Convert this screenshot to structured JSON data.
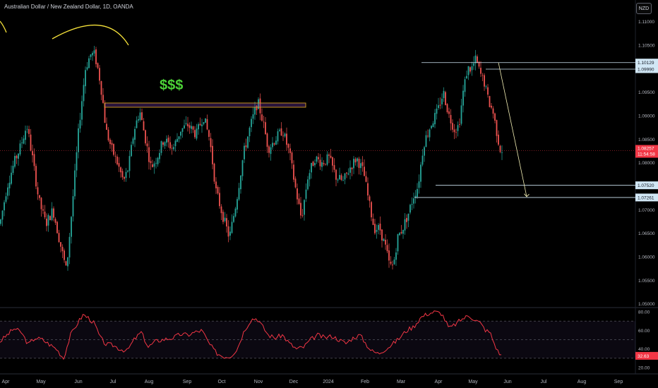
{
  "header": {
    "symbol_title": "Australian Dollar / New Zealand Dollar, 1D, OANDA",
    "currency_button": "NZD"
  },
  "annotations": {
    "dollar_label": "$$$"
  },
  "colors": {
    "background": "#000000",
    "up_candle": "#26a69a",
    "down_candle": "#ef5350",
    "rsi_line": "#f23645",
    "zone_outline": "#d4a020",
    "arc": "#f5e13a",
    "dollar_text": "#4cd137",
    "level_line": "#d1e7f5",
    "price_line": "#f23645"
  },
  "chart_data": [
    {
      "type": "candlestick",
      "x_ticks": [
        "Apr",
        "May",
        "Jun",
        "Jul",
        "Aug",
        "Sep",
        "Oct",
        "Nov",
        "Dec",
        "2024",
        "Feb",
        "Mar",
        "Apr",
        "May",
        "Jun",
        "Jul",
        "Aug",
        "Sep"
      ],
      "y_ticks": [
        "1.11000",
        "1.10500",
        "1.10000",
        "1.09500",
        "1.09000",
        "1.08500",
        "1.08000",
        "1.07500",
        "1.07000",
        "1.06500",
        "1.06000",
        "1.05500",
        "1.05000"
      ],
      "ylim": [
        1.0498,
        1.111
      ],
      "price_path": [
        [
          0,
          1.067
        ],
        [
          10,
          1.075
        ],
        [
          20,
          1.08
        ],
        [
          28,
          1.083
        ],
        [
          38,
          1.088
        ],
        [
          46,
          1.081
        ],
        [
          55,
          1.072
        ],
        [
          65,
          1.067
        ],
        [
          75,
          1.07
        ],
        [
          85,
          1.063
        ],
        [
          94,
          1.057
        ],
        [
          103,
          1.072
        ],
        [
          112,
          1.088
        ],
        [
          121,
          1.1
        ],
        [
          128,
          1.103
        ],
        [
          134,
          1.103
        ],
        [
          140,
          1.099
        ],
        [
          145,
          1.094
        ],
        [
          150,
          1.087
        ],
        [
          158,
          1.083
        ],
        [
          166,
          1.08
        ],
        [
          175,
          1.076
        ],
        [
          182,
          1.079
        ],
        [
          190,
          1.087
        ],
        [
          198,
          1.091
        ],
        [
          206,
          1.085
        ],
        [
          214,
          1.079
        ],
        [
          222,
          1.081
        ],
        [
          232,
          1.085
        ],
        [
          245,
          1.083
        ],
        [
          256,
          1.087
        ],
        [
          266,
          1.088
        ],
        [
          278,
          1.086
        ],
        [
          288,
          1.09
        ],
        [
          297,
          1.085
        ],
        [
          306,
          1.074
        ],
        [
          315,
          1.069
        ],
        [
          325,
          1.064
        ],
        [
          335,
          1.072
        ],
        [
          345,
          1.082
        ],
        [
          355,
          1.088
        ],
        [
          365,
          1.093
        ],
        [
          372,
          1.089
        ],
        [
          380,
          1.083
        ],
        [
          390,
          1.085
        ],
        [
          400,
          1.087
        ],
        [
          410,
          1.082
        ],
        [
          418,
          1.075
        ],
        [
          427,
          1.068
        ],
        [
          436,
          1.077
        ],
        [
          446,
          1.081
        ],
        [
          456,
          1.08
        ],
        [
          466,
          1.081
        ],
        [
          476,
          1.077
        ],
        [
          486,
          1.076
        ],
        [
          496,
          1.079
        ],
        [
          505,
          1.081
        ],
        [
          515,
          1.078
        ],
        [
          522,
          1.072
        ],
        [
          530,
          1.066
        ],
        [
          538,
          1.066
        ],
        [
          546,
          1.062
        ],
        [
          552,
          1.058
        ],
        [
          557,
          1.058
        ],
        [
          563,
          1.064
        ],
        [
          570,
          1.066
        ],
        [
          578,
          1.069
        ],
        [
          586,
          1.073
        ],
        [
          592,
          1.075
        ],
        [
          600,
          1.084
        ],
        [
          610,
          1.088
        ],
        [
          620,
          1.091
        ],
        [
          628,
          1.095
        ],
        [
          636,
          1.09
        ],
        [
          644,
          1.087
        ],
        [
          650,
          1.088
        ],
        [
          656,
          1.095
        ],
        [
          662,
          1.1
        ],
        [
          668,
          1.1
        ],
        [
          674,
          1.102
        ],
        [
          680,
          1.099
        ],
        [
          686,
          1.097
        ],
        [
          692,
          1.093
        ],
        [
          698,
          1.091
        ],
        [
          703,
          1.087
        ],
        [
          708,
          1.083
        ],
        [
          712,
          1.0826
        ]
      ],
      "last_price": "1.08257",
      "countdown": "11:54:58",
      "levels": [
        {
          "value": 1.10129,
          "label": "1.10129",
          "x_start": 597
        },
        {
          "value": 1.0999,
          "label": "1.09990",
          "x_start": 688
        },
        {
          "value": 1.0752,
          "label": "1.07520",
          "x_start": 617
        },
        {
          "value": 1.07261,
          "label": "1.07261",
          "x_start": 587
        }
      ],
      "zone": {
        "x_from": 148,
        "x_to": 433,
        "top": 1.0927,
        "bottom": 1.0918
      },
      "arrow": {
        "from": [
          706,
          1.1013
        ],
        "to": [
          746,
          1.0728
        ]
      }
    },
    {
      "type": "line",
      "name": "RSI",
      "y_ticks": [
        "80.00",
        "60.00",
        "40.00",
        "20.00"
      ],
      "ylim": [
        17,
        83
      ],
      "bands": [
        70,
        50,
        30
      ],
      "last_value": "32.63",
      "values_path": [
        [
          0,
          48
        ],
        [
          10,
          55
        ],
        [
          20,
          62
        ],
        [
          30,
          58
        ],
        [
          40,
          45
        ],
        [
          50,
          52
        ],
        [
          60,
          50
        ],
        [
          70,
          45
        ],
        [
          80,
          40
        ],
        [
          90,
          30
        ],
        [
          100,
          55
        ],
        [
          110,
          68
        ],
        [
          118,
          77
        ],
        [
          126,
          73
        ],
        [
          134,
          67
        ],
        [
          142,
          52
        ],
        [
          150,
          45
        ],
        [
          160,
          44
        ],
        [
          170,
          40
        ],
        [
          180,
          38
        ],
        [
          190,
          50
        ],
        [
          200,
          58
        ],
        [
          210,
          42
        ],
        [
          220,
          48
        ],
        [
          230,
          50
        ],
        [
          245,
          52
        ],
        [
          256,
          56
        ],
        [
          266,
          55
        ],
        [
          276,
          58
        ],
        [
          286,
          60
        ],
        [
          296,
          46
        ],
        [
          306,
          36
        ],
        [
          316,
          32
        ],
        [
          326,
          32
        ],
        [
          336,
          40
        ],
        [
          346,
          60
        ],
        [
          356,
          72
        ],
        [
          364,
          73
        ],
        [
          372,
          64
        ],
        [
          380,
          55
        ],
        [
          390,
          52
        ],
        [
          400,
          55
        ],
        [
          410,
          46
        ],
        [
          420,
          40
        ],
        [
          430,
          42
        ],
        [
          440,
          50
        ],
        [
          450,
          55
        ],
        [
          460,
          52
        ],
        [
          470,
          54
        ],
        [
          480,
          50
        ],
        [
          490,
          46
        ],
        [
          500,
          52
        ],
        [
          510,
          55
        ],
        [
          518,
          46
        ],
        [
          526,
          38
        ],
        [
          536,
          35
        ],
        [
          546,
          40
        ],
        [
          556,
          45
        ],
        [
          566,
          52
        ],
        [
          576,
          60
        ],
        [
          586,
          64
        ],
        [
          596,
          74
        ],
        [
          606,
          78
        ],
        [
          616,
          80
        ],
        [
          626,
          78
        ],
        [
          636,
          62
        ],
        [
          644,
          66
        ],
        [
          654,
          72
        ],
        [
          664,
          76
        ],
        [
          672,
          72
        ],
        [
          680,
          68
        ],
        [
          688,
          60
        ],
        [
          694,
          58
        ],
        [
          700,
          46
        ],
        [
          706,
          36
        ],
        [
          712,
          32.63
        ]
      ]
    }
  ]
}
